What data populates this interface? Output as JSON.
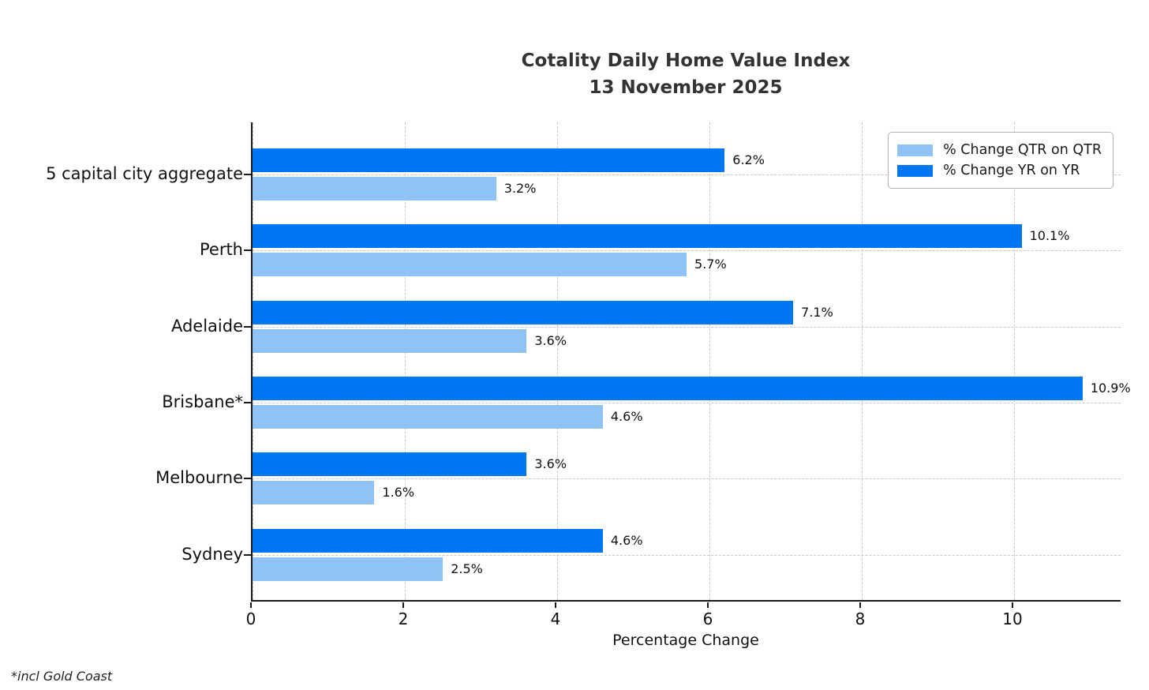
{
  "title": {
    "line1": "Cotality Daily Home Value Index",
    "line2": "13 November 2025"
  },
  "footnote": "*incl Gold Coast",
  "chart_data": {
    "type": "bar",
    "orientation": "horizontal",
    "title": "Cotality Daily Home Value Index\n13 November 2025",
    "xlabel": "Percentage Change",
    "ylabel": "",
    "categories": [
      "5 capital city aggregate",
      "Perth",
      "Adelaide",
      "Brisbane*",
      "Melbourne",
      "Sydney"
    ],
    "series": [
      {
        "name": "% Change QTR on QTR",
        "color": "#8FC3F7",
        "values": [
          3.2,
          5.7,
          3.6,
          4.6,
          1.6,
          2.5
        ]
      },
      {
        "name": "% Change YR on YR",
        "color": "#0077F2",
        "values": [
          6.2,
          10.1,
          7.1,
          10.9,
          3.6,
          4.6
        ]
      }
    ],
    "value_labels": {
      "% Change QTR on QTR": [
        "3.2%",
        "5.7%",
        "3.6%",
        "4.6%",
        "1.6%",
        "2.5%"
      ],
      "% Change YR on YR": [
        "6.2%",
        "10.1%",
        "7.1%",
        "10.9%",
        "3.6%",
        "4.6%"
      ]
    },
    "xticks": [
      0,
      2,
      4,
      6,
      8,
      10
    ],
    "xlim": [
      0,
      11.42
    ],
    "grid": true,
    "grid_style": "dashed",
    "legend_position": "upper right",
    "note": "*incl Gold Coast"
  }
}
